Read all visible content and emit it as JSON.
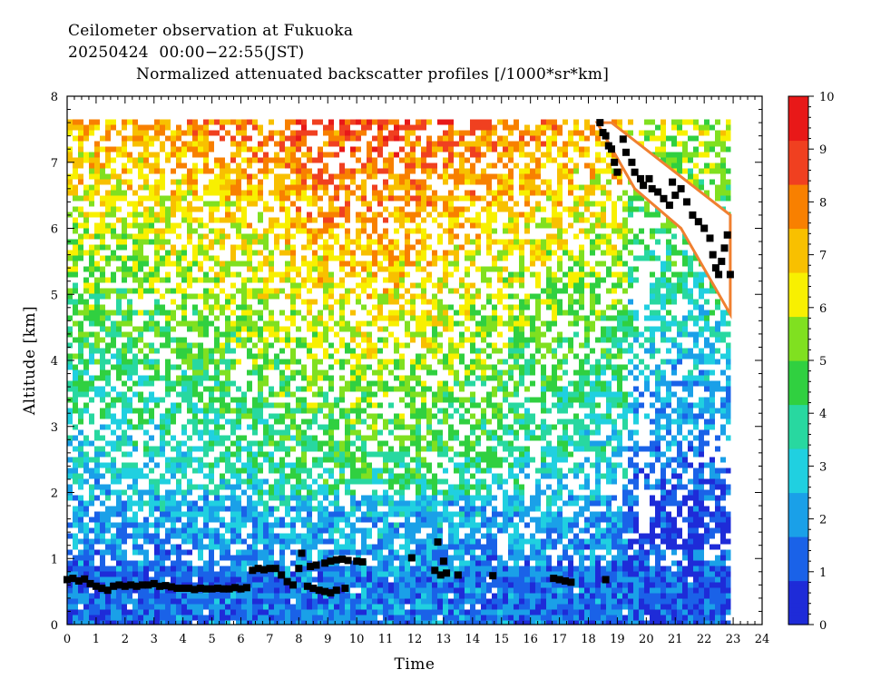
{
  "header": {
    "line1": "Ceilometer observation at Fukuoka",
    "line2": "20250424  00:00−22:55(JST)",
    "line3": "Normalized attenuated backscatter profiles [/1000*sr*km]"
  },
  "chart_data": {
    "type": "heatmap",
    "title": "Normalized attenuated backscatter profiles [/1000*sr*km]",
    "xlabel": "Time",
    "ylabel": "Altitude [km]",
    "xlim": [
      0,
      24
    ],
    "ylim": [
      0,
      8
    ],
    "data_range_x": [
      0,
      22.92
    ],
    "data_top_km": 7.65,
    "x_ticks": [
      "0",
      "1",
      "2",
      "3",
      "4",
      "5",
      "6",
      "7",
      "8",
      "9",
      "10",
      "11",
      "12",
      "13",
      "14",
      "15",
      "16",
      "17",
      "18",
      "19",
      "20",
      "21",
      "22",
      "23",
      "24"
    ],
    "y_ticks": [
      "0",
      "1",
      "2",
      "3",
      "4",
      "5",
      "6",
      "7",
      "8"
    ],
    "colorbar": {
      "min": 0,
      "max": 10,
      "ticks": [
        "0",
        "1",
        "2",
        "3",
        "4",
        "5",
        "6",
        "7",
        "8",
        "9",
        "10"
      ],
      "colors": [
        "#1e2bd8",
        "#1a62e8",
        "#1aa0e8",
        "#20d0e0",
        "#28d8a0",
        "#30d040",
        "#80e020",
        "#f8f000",
        "#f8c000",
        "#f88000",
        "#f04020",
        "#e81818"
      ]
    },
    "field_description": {
      "lower_layer_km": [
        0.0,
        0.6
      ],
      "lower_layer_value": 1.2,
      "mid_level_value": 3.5,
      "upper_level_value": 7.0,
      "cloud_top_time_range": [
        18.3,
        22.9
      ],
      "cloud_band_km": [
        [
          18.3,
          7.6
        ],
        [
          22.9,
          5.3
        ]
      ]
    },
    "series": [
      {
        "name": "",
        "marker": "black-square",
        "points": [
          [
            0.0,
            0.68
          ],
          [
            0.2,
            0.7
          ],
          [
            0.4,
            0.66
          ],
          [
            0.6,
            0.69
          ],
          [
            0.8,
            0.62
          ],
          [
            1.0,
            0.58
          ],
          [
            1.2,
            0.55
          ],
          [
            1.4,
            0.52
          ],
          [
            1.6,
            0.58
          ],
          [
            1.8,
            0.6
          ],
          [
            2.0,
            0.58
          ],
          [
            2.2,
            0.6
          ],
          [
            2.4,
            0.58
          ],
          [
            2.6,
            0.6
          ],
          [
            2.8,
            0.6
          ],
          [
            3.0,
            0.62
          ],
          [
            3.2,
            0.58
          ],
          [
            3.4,
            0.59
          ],
          [
            3.6,
            0.57
          ],
          [
            3.8,
            0.55
          ],
          [
            4.0,
            0.55
          ],
          [
            4.2,
            0.55
          ],
          [
            4.4,
            0.53
          ],
          [
            4.6,
            0.55
          ],
          [
            4.8,
            0.54
          ],
          [
            5.0,
            0.54
          ],
          [
            5.2,
            0.55
          ],
          [
            5.4,
            0.54
          ],
          [
            5.6,
            0.54
          ],
          [
            5.8,
            0.56
          ],
          [
            6.0,
            0.54
          ],
          [
            6.2,
            0.56
          ],
          [
            6.4,
            0.82
          ],
          [
            6.6,
            0.85
          ],
          [
            6.8,
            0.83
          ],
          [
            7.0,
            0.85
          ],
          [
            7.2,
            0.85
          ],
          [
            7.4,
            0.75
          ],
          [
            7.6,
            0.65
          ],
          [
            7.8,
            0.6
          ],
          [
            8.0,
            0.85
          ],
          [
            8.1,
            1.08
          ],
          [
            8.3,
            0.58
          ],
          [
            8.5,
            0.55
          ],
          [
            8.7,
            0.52
          ],
          [
            8.9,
            0.5
          ],
          [
            9.1,
            0.48
          ],
          [
            9.3,
            0.52
          ],
          [
            8.4,
            0.88
          ],
          [
            8.6,
            0.9
          ],
          [
            8.9,
            0.93
          ],
          [
            9.1,
            0.96
          ],
          [
            9.3,
            0.98
          ],
          [
            9.5,
            0.99
          ],
          [
            9.7,
            0.97
          ],
          [
            10.0,
            0.96
          ],
          [
            10.2,
            0.95
          ],
          [
            9.6,
            0.55
          ],
          [
            11.9,
            1.01
          ],
          [
            12.8,
            1.25
          ],
          [
            12.7,
            0.82
          ],
          [
            12.9,
            0.75
          ],
          [
            13.0,
            0.96
          ],
          [
            13.1,
            0.78
          ],
          [
            13.5,
            0.75
          ],
          [
            14.7,
            0.74
          ],
          [
            16.8,
            0.7
          ],
          [
            17.0,
            0.68
          ],
          [
            17.2,
            0.66
          ],
          [
            17.4,
            0.64
          ],
          [
            18.6,
            0.68
          ],
          [
            18.4,
            7.6
          ],
          [
            18.5,
            7.45
          ],
          [
            18.6,
            7.4
          ],
          [
            18.7,
            7.25
          ],
          [
            18.8,
            7.2
          ],
          [
            18.9,
            7.0
          ],
          [
            19.0,
            6.85
          ],
          [
            19.2,
            7.35
          ],
          [
            19.3,
            7.15
          ],
          [
            19.5,
            7.0
          ],
          [
            19.6,
            6.85
          ],
          [
            19.8,
            6.75
          ],
          [
            19.9,
            6.65
          ],
          [
            20.1,
            6.75
          ],
          [
            20.2,
            6.6
          ],
          [
            20.4,
            6.55
          ],
          [
            20.6,
            6.45
          ],
          [
            20.8,
            6.35
          ],
          [
            20.9,
            6.7
          ],
          [
            21.0,
            6.5
          ],
          [
            21.2,
            6.6
          ],
          [
            21.4,
            6.4
          ],
          [
            21.6,
            6.2
          ],
          [
            21.8,
            6.1
          ],
          [
            22.0,
            6.0
          ],
          [
            22.2,
            5.85
          ],
          [
            22.3,
            5.6
          ],
          [
            22.4,
            5.4
          ],
          [
            22.5,
            5.3
          ],
          [
            22.6,
            5.5
          ],
          [
            22.7,
            5.7
          ],
          [
            22.8,
            5.9
          ],
          [
            22.9,
            5.3
          ]
        ]
      }
    ]
  }
}
